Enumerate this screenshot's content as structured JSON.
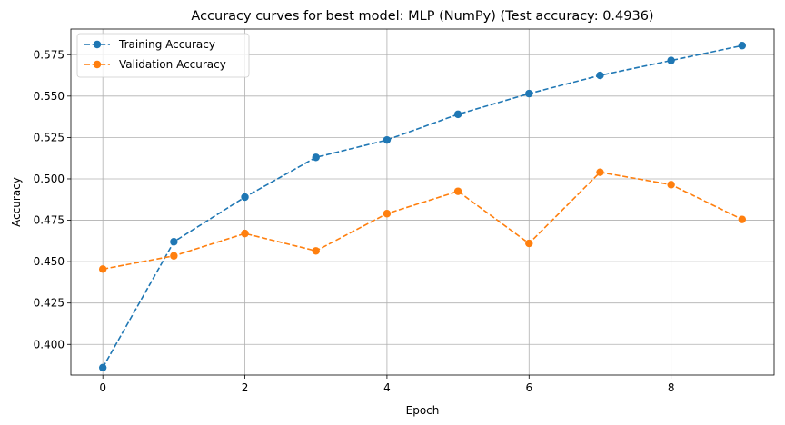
{
  "chart_data": {
    "type": "line",
    "title": "Accuracy curves for best model: MLP (NumPy) (Test accuracy: 0.4936)",
    "xlabel": "Epoch",
    "ylabel": "Accuracy",
    "xlim": [
      -0.45,
      9.45
    ],
    "ylim": [
      0.3815,
      0.5905
    ],
    "xticks": [
      0,
      2,
      4,
      6,
      8
    ],
    "xtick_labels": [
      "0",
      "2",
      "4",
      "6",
      "8"
    ],
    "yticks": [
      0.4,
      0.425,
      0.45,
      0.475,
      0.5,
      0.525,
      0.55,
      0.575
    ],
    "ytick_labels": [
      "0.400",
      "0.425",
      "0.450",
      "0.475",
      "0.500",
      "0.525",
      "0.550",
      "0.575"
    ],
    "grid": true,
    "legend_position": "top-left",
    "x": [
      0,
      1,
      2,
      3,
      4,
      5,
      6,
      7,
      8,
      9
    ],
    "series": [
      {
        "name": "Training Accuracy",
        "color": "#1f77b4",
        "values": [
          0.386,
          0.462,
          0.489,
          0.513,
          0.5235,
          0.539,
          0.5515,
          0.5625,
          0.5715,
          0.5805
        ]
      },
      {
        "name": "Validation Accuracy",
        "color": "#ff7f0e",
        "values": [
          0.4455,
          0.4535,
          0.467,
          0.4565,
          0.479,
          0.4925,
          0.461,
          0.504,
          0.4965,
          0.4755
        ]
      }
    ]
  }
}
